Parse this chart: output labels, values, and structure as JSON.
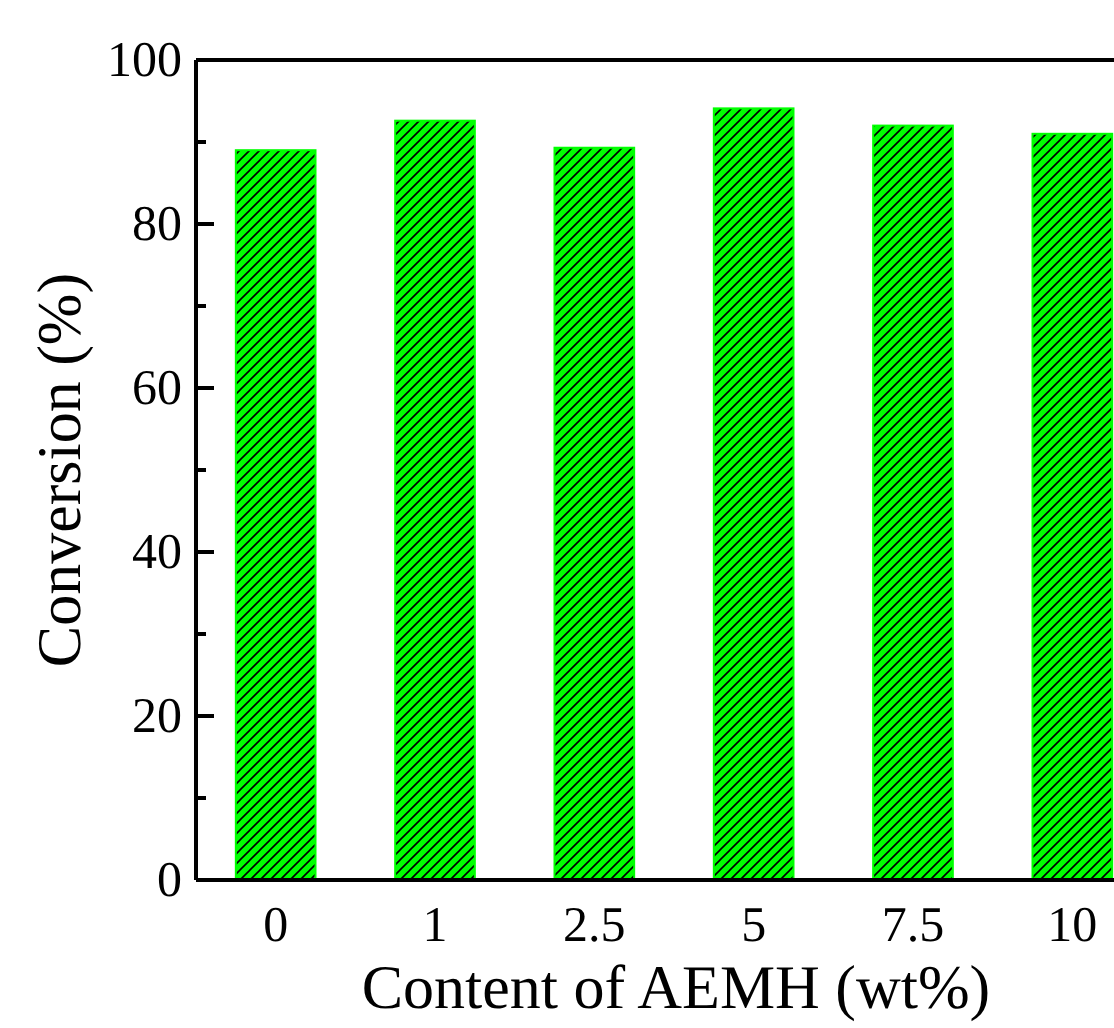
{
  "chart_data": {
    "type": "bar",
    "xlabel": "Content of AEMH (wt%)",
    "ylabel": "Conversion (%)",
    "categories": [
      "0",
      "1",
      "2.5",
      "5",
      "7.5",
      "10"
    ],
    "values": [
      89.0,
      92.6,
      89.3,
      94.1,
      92.0,
      91.0
    ],
    "color": "#00ff00",
    "ylim": [
      0,
      100
    ],
    "yticks": [
      0,
      {
        "value": 10,
        "label": null
      },
      20,
      {
        "value": 30,
        "label": null
      },
      40,
      {
        "value": 50,
        "label": null
      },
      60,
      {
        "value": 70,
        "label": null
      },
      80,
      {
        "value": 90,
        "label": null
      },
      100
    ],
    "grid": false
  }
}
